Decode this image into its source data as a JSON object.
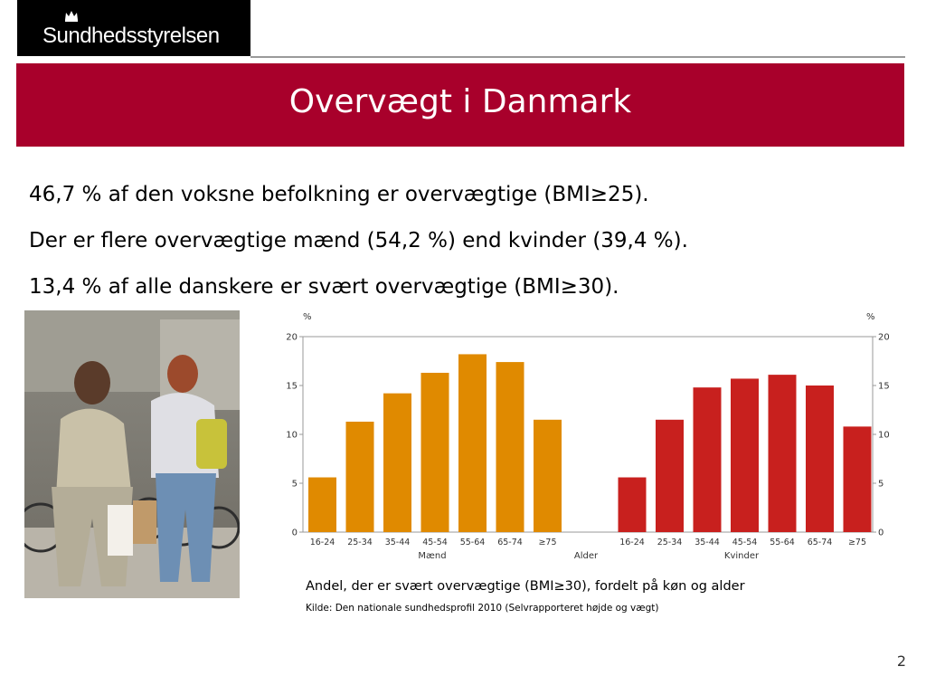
{
  "header": {
    "logo_text": "Sundhedsstyrelsen",
    "title": "Overvægt i Danmark",
    "band_color": "#a8002b"
  },
  "bullets": [
    "46,7 % af den voksne befolkning er overvægtige (BMI≥25).",
    "Der er flere overvægtige mænd (54,2 %) end kvinder (39,4 %).",
    "13,4 % af alle danskere er svært overvægtige (BMI≥30)."
  ],
  "photo": {
    "icon": "people-walking-photo"
  },
  "chart_data": {
    "type": "bar",
    "title": "",
    "unit_left": "%",
    "unit_right": "%",
    "xlabel": "Alder",
    "ylim": [
      0,
      20
    ],
    "yticks": [
      "0",
      "5",
      "10",
      "15",
      "20"
    ],
    "grid": false,
    "series": [
      {
        "name": "Mænd",
        "color": "#e08a00",
        "categories": [
          "16-24",
          "25-34",
          "35-44",
          "45-54",
          "55-64",
          "65-74",
          "≥75"
        ],
        "values": [
          5.6,
          11.3,
          14.2,
          16.3,
          18.2,
          17.4,
          11.5
        ]
      },
      {
        "name": "Kvinder",
        "color": "#c8201e",
        "categories": [
          "16-24",
          "25-34",
          "35-44",
          "45-54",
          "55-64",
          "65-74",
          "≥75"
        ],
        "values": [
          5.6,
          11.5,
          14.8,
          15.7,
          16.1,
          15.0,
          10.8
        ]
      }
    ]
  },
  "caption": "Andel, der er svært overvægtige (BMI≥30), fordelt på køn og alder",
  "source": "Kilde: Den nationale sundhedsprofil 2010 (Selvrapporteret højde og vægt)",
  "page_number": "2"
}
